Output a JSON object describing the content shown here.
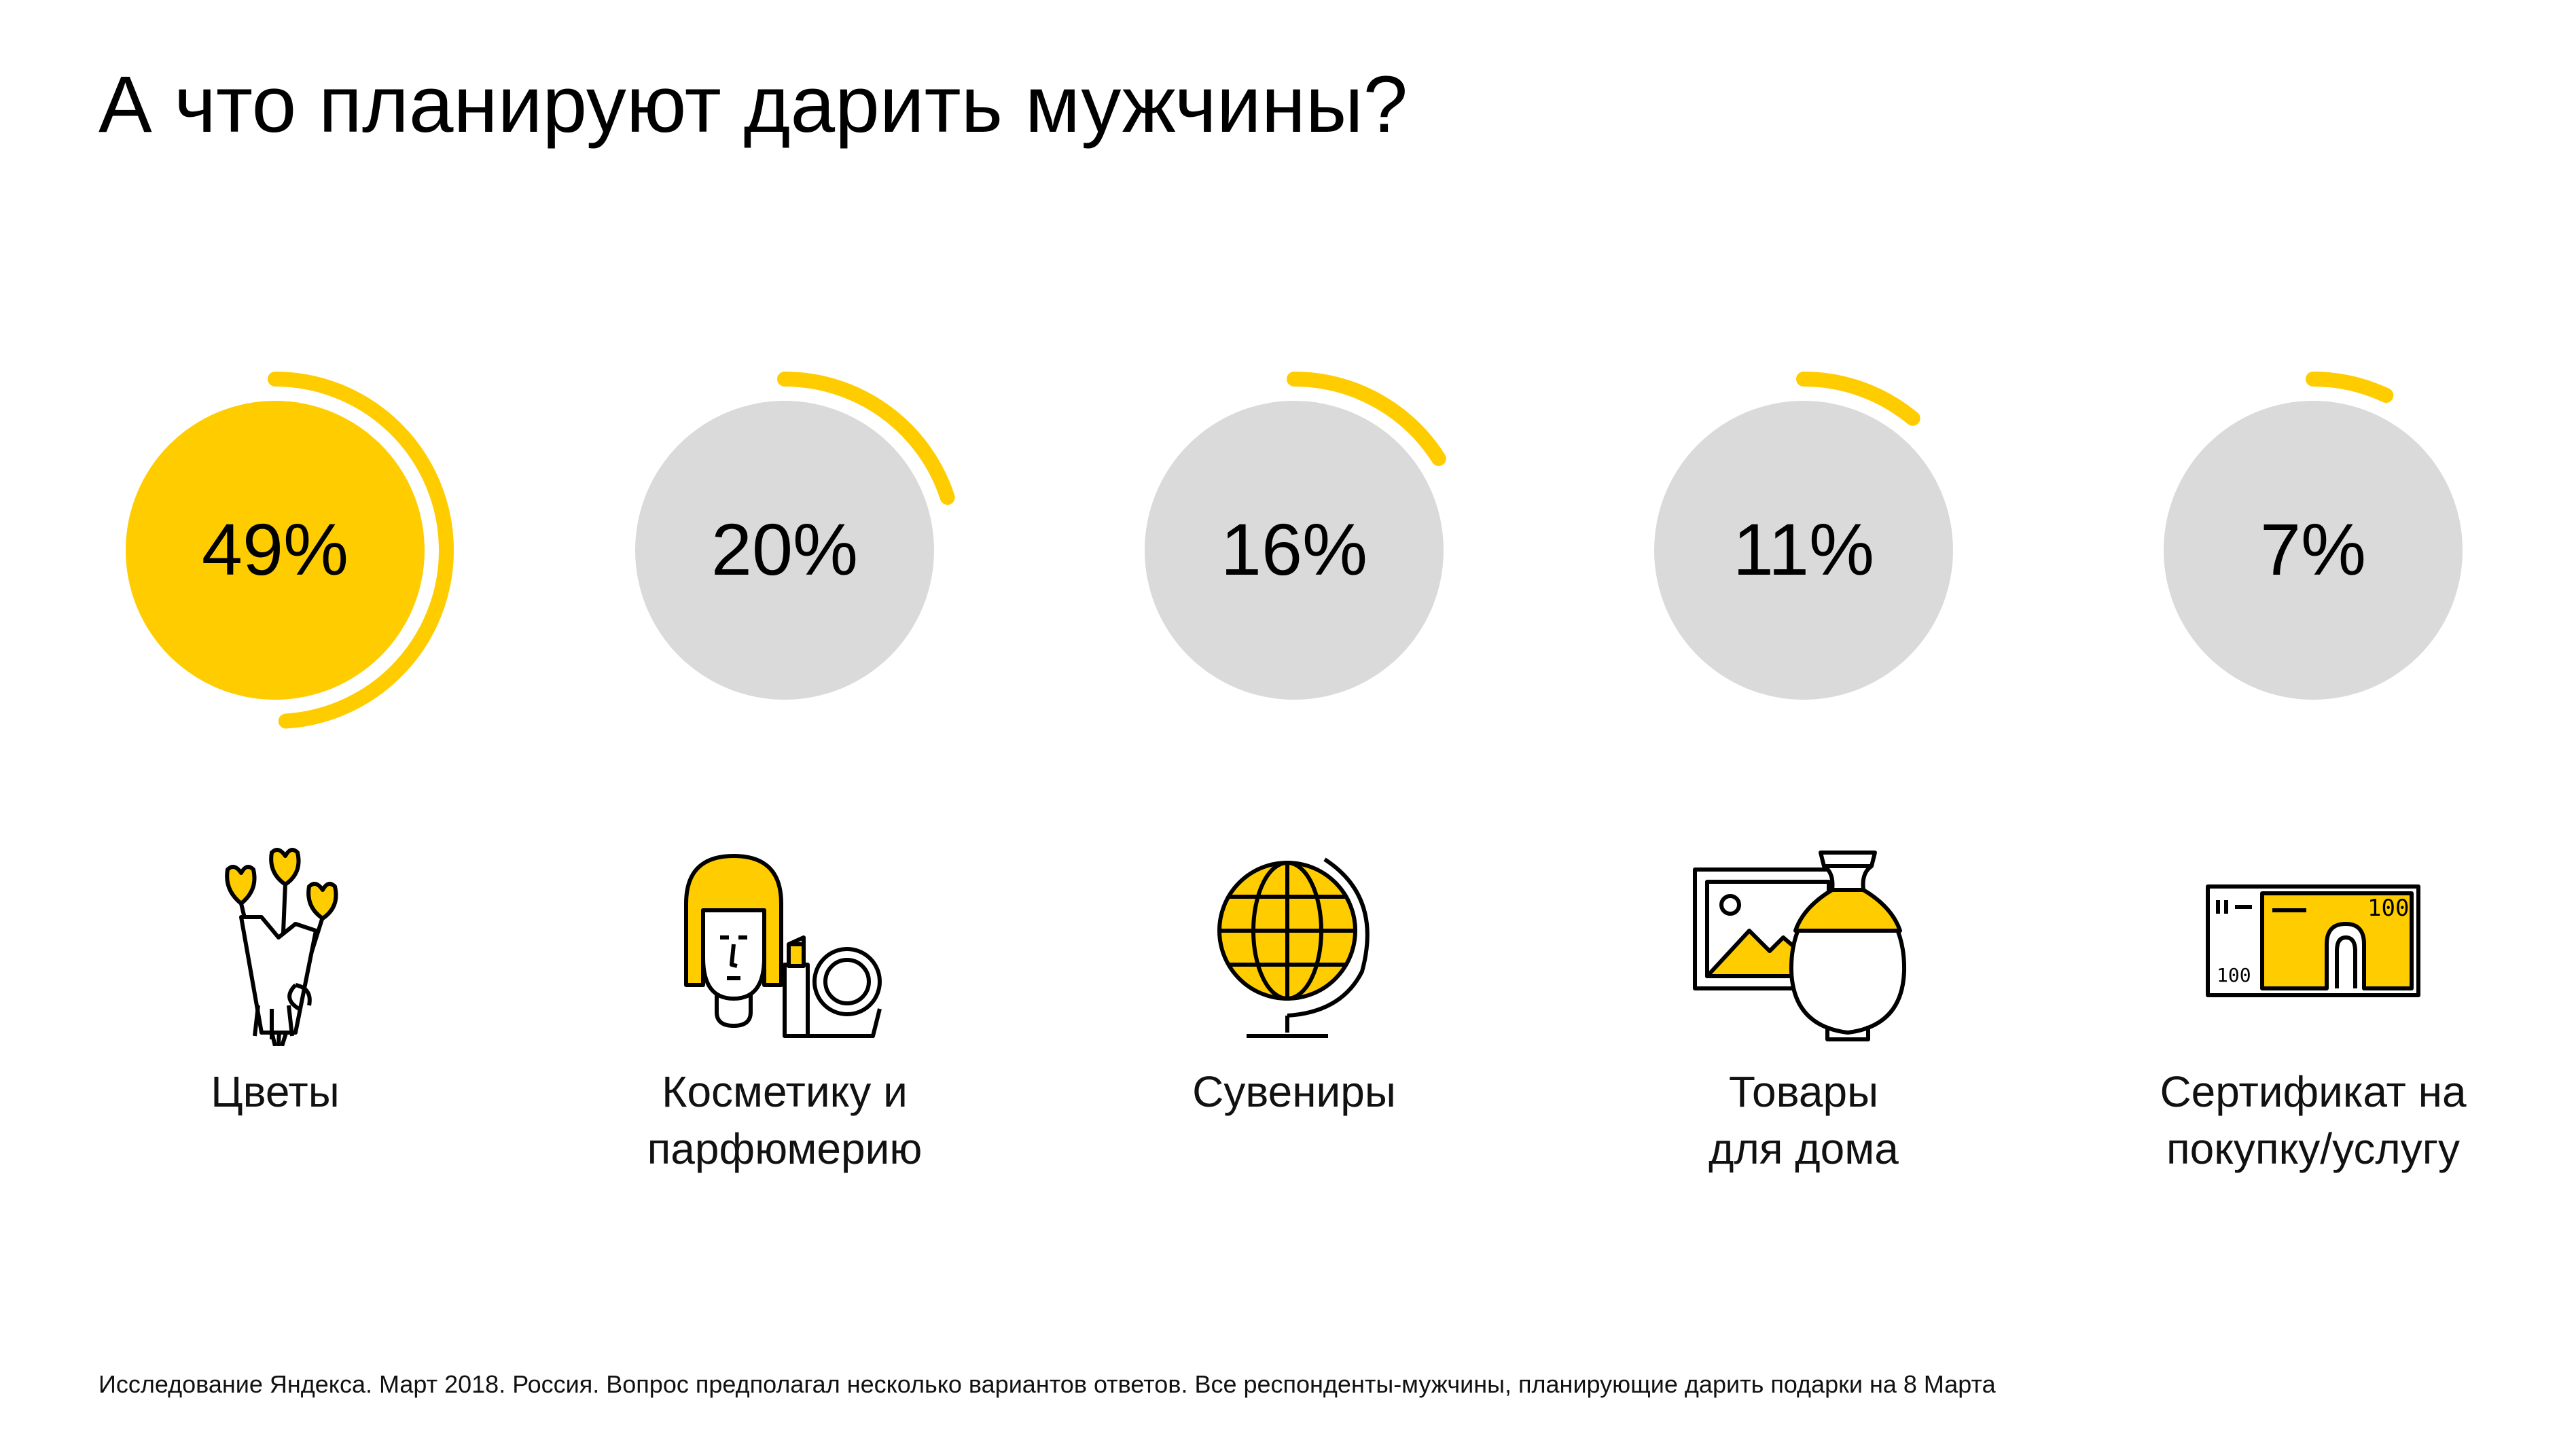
{
  "title": "А что планируют дарить мужчины?",
  "colors": {
    "accent": "#FFCC00",
    "track": "#DADADA",
    "text": "#111111"
  },
  "chart_data": {
    "type": "pie",
    "title": "А что планируют дарить мужчины?",
    "unit": "%",
    "items": [
      {
        "value": 49,
        "value_label": "49%",
        "label_lines": [
          "Цветы"
        ],
        "icon": "flowers-bouquet-icon",
        "highlight": true
      },
      {
        "value": 20,
        "value_label": "20%",
        "label_lines": [
          "Косметику и",
          "парфюмерию"
        ],
        "icon": "cosmetics-icon",
        "highlight": false
      },
      {
        "value": 16,
        "value_label": "16%",
        "label_lines": [
          "Сувениры"
        ],
        "icon": "globe-icon",
        "highlight": false
      },
      {
        "value": 11,
        "value_label": "11%",
        "label_lines": [
          "Товары",
          "для дома"
        ],
        "icon": "home-goods-icon",
        "highlight": false
      },
      {
        "value": 7,
        "value_label": "7%",
        "label_lines": [
          "Сертификат на",
          "покупку/услугу"
        ],
        "icon": "gift-certificate-icon",
        "highlight": false
      }
    ]
  },
  "footnote": "Исследование Яндекса. Март 2018. Россия. Вопрос предполагал несколько вариантов ответов. Все респонденты-мужчины, планирующие дарить подарки на 8 Марта"
}
